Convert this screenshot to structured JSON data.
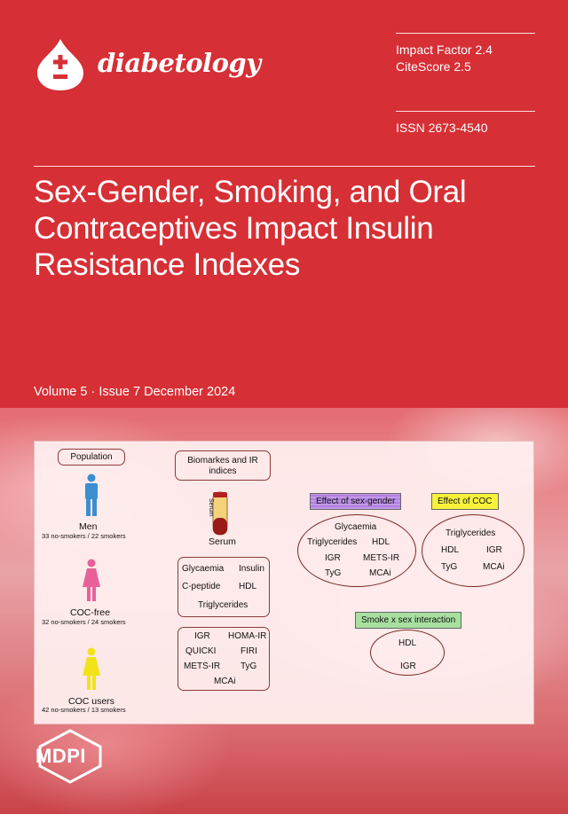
{
  "journal": {
    "name": "diabetology",
    "impact_factor": "Impact Factor 2.4",
    "citescore": "CiteScore 2.5",
    "issn": "ISSN 2673-4540"
  },
  "article": {
    "title": "Sex-Gender, Smoking, and Oral Contraceptives Impact Insulin Resistance Indexes",
    "volume_line": "Volume 5 · Issue 7 December 2024"
  },
  "abstract": {
    "population_label": "Population",
    "groups": [
      {
        "name": "Men",
        "detail": "33 no-smokers / 22 smokers",
        "color": "#3b8fd0"
      },
      {
        "name": "COC-free",
        "detail": "32 no-smokers / 24 smokers",
        "color": "#e8609a"
      },
      {
        "name": "COC users",
        "detail": "42 no-smokers / 13 smokers",
        "color": "#f2e21a"
      }
    ],
    "biomarkers_label": "Biomarkes and IR indices",
    "tube_label": "Serum",
    "serum_label": "Serum",
    "biomarkers": [
      "Glycaemia",
      "Insulin",
      "C-peptide",
      "HDL",
      "Triglycerides"
    ],
    "indices": [
      "IGR",
      "HOMA-IR",
      "QUICKI",
      "FIRI",
      "METS-IR",
      "TyG",
      "MCAi"
    ],
    "sex_effect": {
      "label": "Effect of sex-gender",
      "items": [
        "Glycaemia",
        "Triglycerides",
        "HDL",
        "IGR",
        "METS-IR",
        "TyG",
        "MCAi"
      ],
      "color": "#b98ae6"
    },
    "coc_effect": {
      "label": "Effect of COC",
      "items": [
        "Triglycerides",
        "HDL",
        "IGR",
        "TyG",
        "MCAi"
      ],
      "color": "#f6f23a"
    },
    "interaction": {
      "label": "Smoke x sex interaction",
      "items": [
        "HDL",
        "IGR"
      ],
      "color": "#a8e0a0"
    }
  },
  "publisher": {
    "name": "MDPI"
  }
}
